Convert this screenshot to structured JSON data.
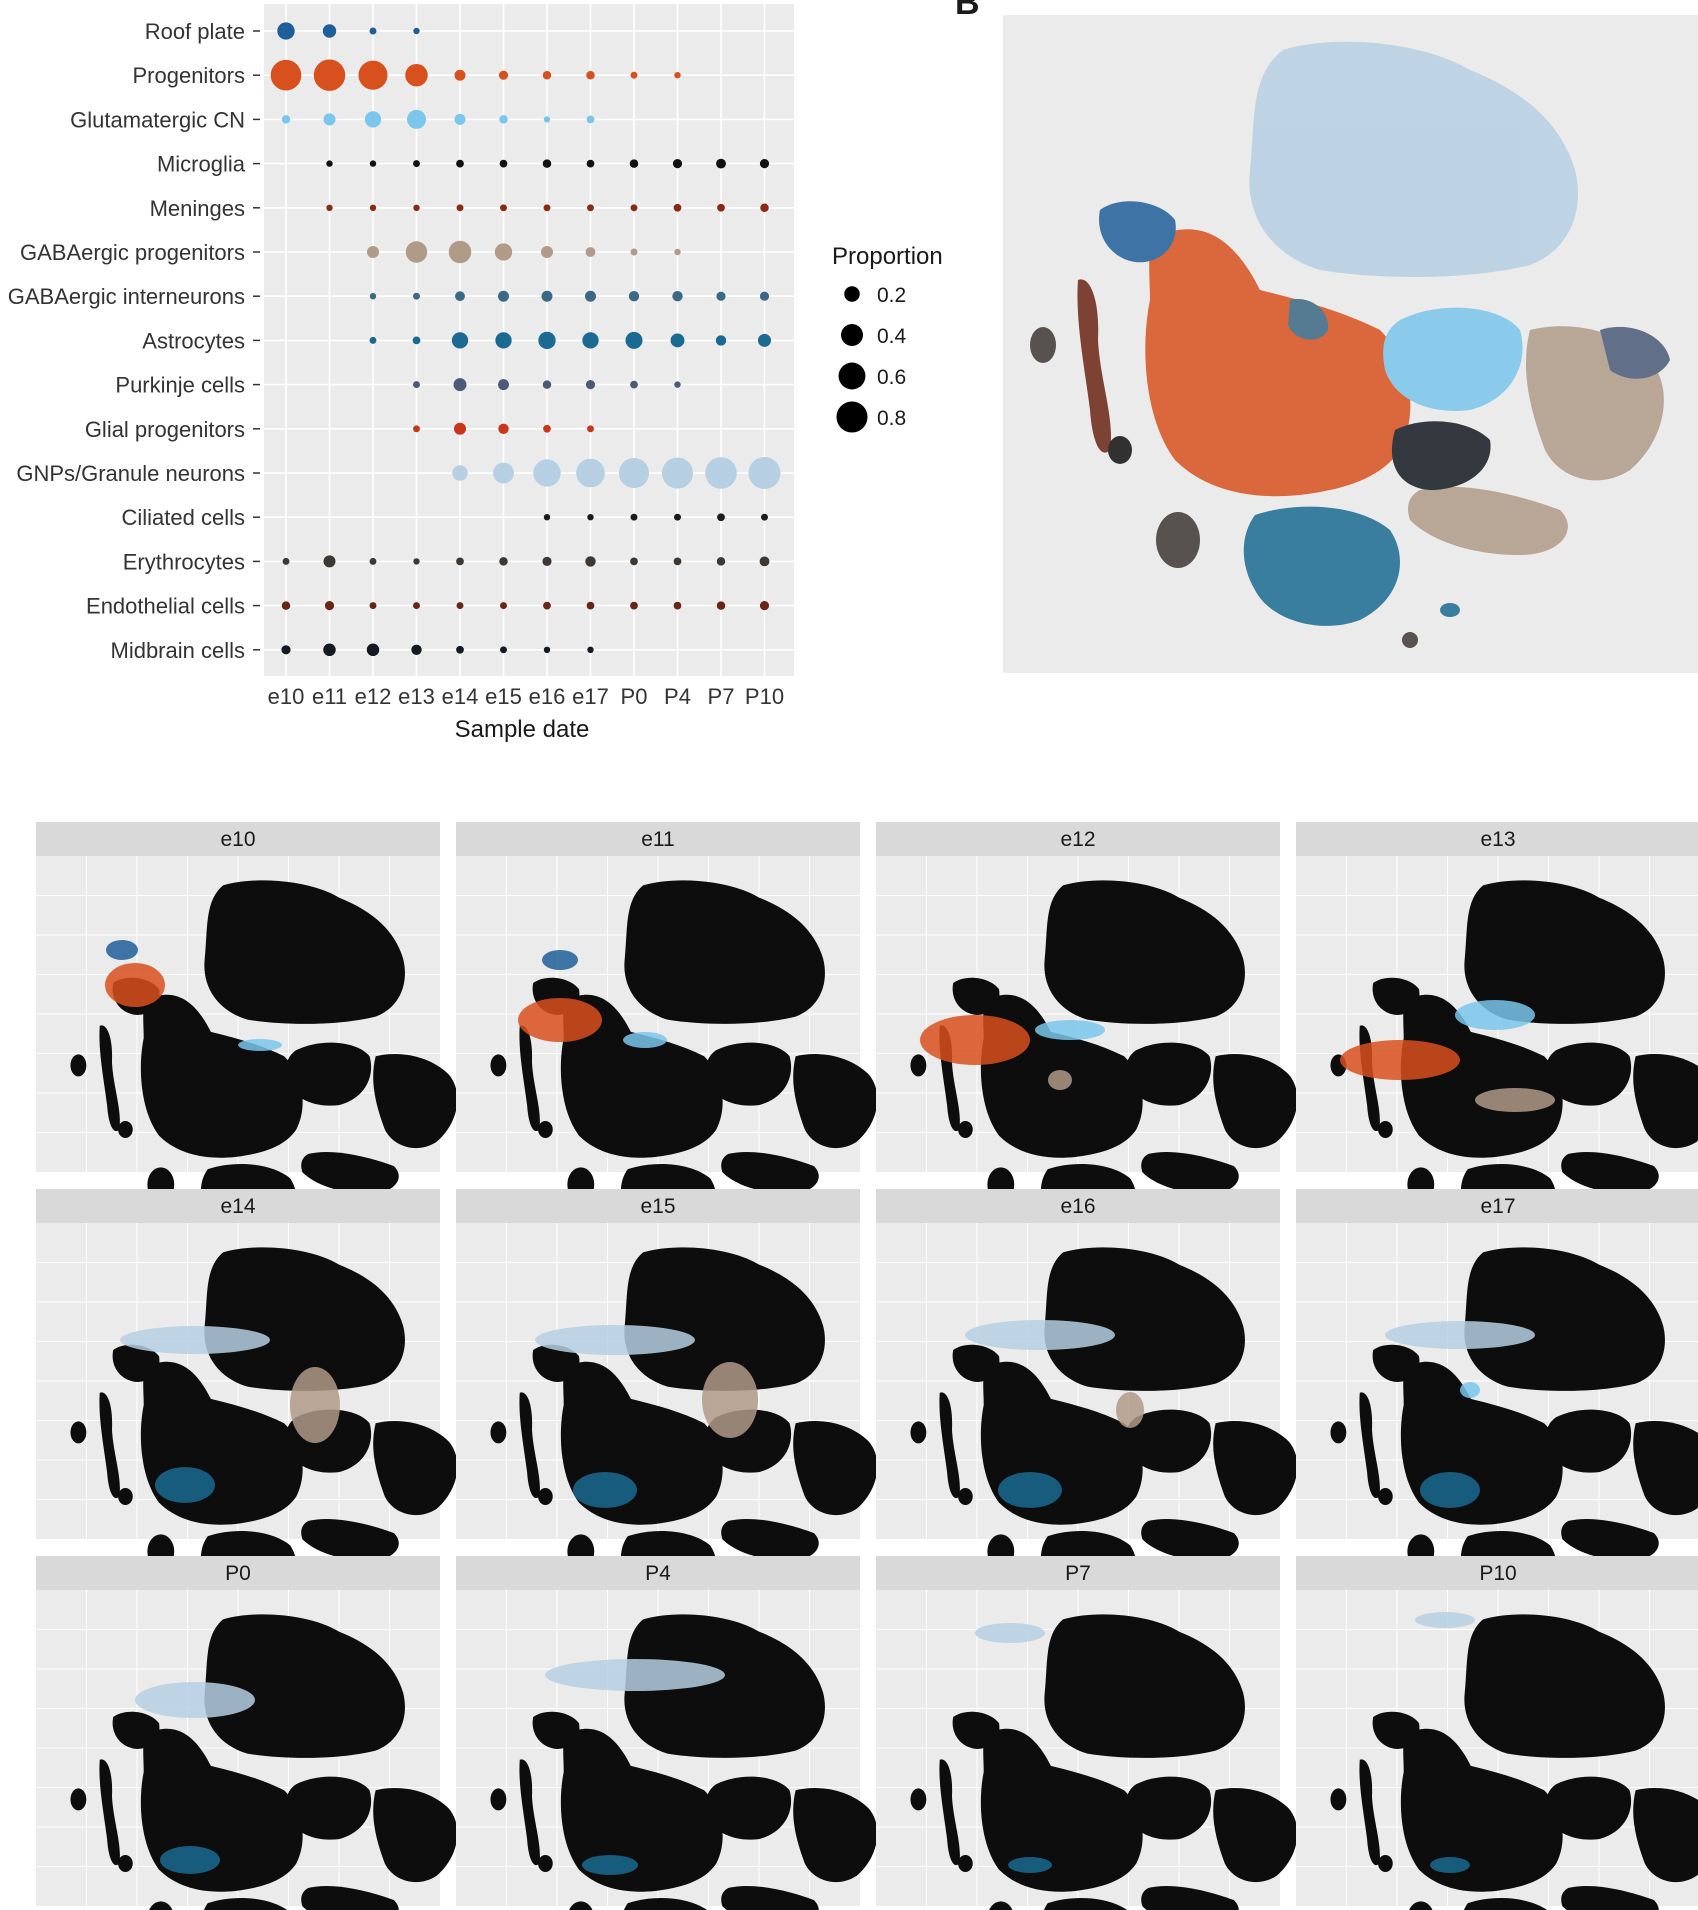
{
  "figure": {
    "panel_letter": "B"
  },
  "chart_data": [
    {
      "type": "scatter",
      "subtype": "dot-plot",
      "xlabel": "Sample date",
      "categories": [
        "e10",
        "e11",
        "e12",
        "e13",
        "e14",
        "e15",
        "e16",
        "e17",
        "P0",
        "P4",
        "P7",
        "P10"
      ],
      "cell_types": [
        "Roof plate",
        "Progenitors",
        "Glutamatergic CN",
        "Microglia",
        "Meninges",
        "GABAergic progenitors",
        "GABAergic interneurons",
        "Astrocytes",
        "Purkinje cells",
        "Glial progenitors",
        "GNPs/Granule neurons",
        "Ciliated cells",
        "Erythrocytes",
        "Endothelial cells",
        "Midbrain cells"
      ],
      "colors": {
        "Roof plate": "#1f5f99",
        "Progenitors": "#d9501f",
        "Glutamatergic CN": "#7ac6ec",
        "Microglia": "#111111",
        "Meninges": "#8a2a10",
        "GABAergic progenitors": "#b09a88",
        "GABAergic interneurons": "#3b6884",
        "Astrocytes": "#1a6a92",
        "Purkinje cells": "#4a5a78",
        "Glial progenitors": "#c9361a",
        "GNPs/Granule neurons": "#b6cfe2",
        "Ciliated cells": "#1c1c1c",
        "Erythrocytes": "#3e3835",
        "Endothelial cells": "#6b2515",
        "Midbrain cells": "#151a22"
      },
      "series": [
        {
          "name": "Roof plate",
          "values": [
            0.25,
            0.15,
            0.04,
            0.03,
            null,
            null,
            null,
            null,
            null,
            null,
            null,
            null
          ]
        },
        {
          "name": "Progenitors",
          "values": [
            0.78,
            0.82,
            0.7,
            0.42,
            0.1,
            0.07,
            0.06,
            0.06,
            0.04,
            0.03,
            null,
            null
          ]
        },
        {
          "name": "Glutamatergic CN",
          "values": [
            0.06,
            0.12,
            0.22,
            0.3,
            0.1,
            0.06,
            0.03,
            0.05,
            null,
            null,
            null,
            null
          ]
        },
        {
          "name": "Microglia",
          "values": [
            null,
            0.03,
            0.03,
            0.04,
            0.05,
            0.05,
            0.06,
            0.05,
            0.06,
            0.07,
            0.08,
            0.07
          ]
        },
        {
          "name": "Meninges",
          "values": [
            null,
            0.03,
            0.03,
            0.03,
            0.04,
            0.04,
            0.04,
            0.04,
            0.04,
            0.05,
            0.05,
            0.06
          ]
        },
        {
          "name": "GABAergic progenitors",
          "values": [
            null,
            null,
            0.12,
            0.38,
            0.42,
            0.25,
            0.12,
            0.08,
            0.04,
            0.03,
            null,
            null
          ]
        },
        {
          "name": "GABAergic interneurons",
          "values": [
            null,
            null,
            0.03,
            0.04,
            0.08,
            0.1,
            0.1,
            0.1,
            0.09,
            0.09,
            0.07,
            0.07
          ]
        },
        {
          "name": "Astrocytes",
          "values": [
            null,
            null,
            0.04,
            0.05,
            0.22,
            0.22,
            0.25,
            0.22,
            0.24,
            0.16,
            0.09,
            0.14
          ]
        },
        {
          "name": "Purkinje cells",
          "values": [
            null,
            null,
            null,
            0.04,
            0.14,
            0.1,
            0.06,
            0.07,
            0.05,
            0.03,
            null,
            null
          ]
        },
        {
          "name": "Glial progenitors",
          "values": [
            null,
            null,
            null,
            0.04,
            0.12,
            0.09,
            0.05,
            0.04,
            null,
            null,
            null,
            null
          ]
        },
        {
          "name": "GNPs/Granule neurons",
          "values": [
            null,
            null,
            null,
            null,
            0.2,
            0.36,
            0.62,
            0.68,
            0.75,
            0.8,
            0.83,
            0.85
          ]
        },
        {
          "name": "Ciliated cells",
          "values": [
            null,
            null,
            null,
            null,
            null,
            null,
            0.03,
            0.03,
            0.04,
            0.04,
            0.05,
            0.04
          ]
        },
        {
          "name": "Erythrocytes",
          "values": [
            0.04,
            0.12,
            0.04,
            0.03,
            0.05,
            0.06,
            0.07,
            0.09,
            0.05,
            0.05,
            0.06,
            0.08
          ]
        },
        {
          "name": "Endothelial cells",
          "values": [
            0.06,
            0.07,
            0.04,
            0.04,
            0.04,
            0.04,
            0.05,
            0.05,
            0.05,
            0.05,
            0.06,
            0.07
          ]
        },
        {
          "name": "Midbrain cells",
          "values": [
            0.07,
            0.13,
            0.13,
            0.09,
            0.05,
            0.04,
            0.03,
            0.03,
            null,
            null,
            null,
            null
          ]
        }
      ],
      "legend": {
        "title": "Proportion",
        "levels": [
          0.2,
          0.4,
          0.6,
          0.8
        ],
        "labels": [
          "0.2",
          "0.4",
          "0.6",
          "0.8"
        ],
        "placement": "right"
      },
      "grid": true
    },
    {
      "type": "scatter",
      "subtype": "t-SNE embedding, all cells colored by cell type",
      "axes_shown": false
    },
    {
      "type": "scatter",
      "subtype": "t-SNE embedding faceted by sample date",
      "facets": [
        "e10",
        "e11",
        "e12",
        "e13",
        "e14",
        "e15",
        "e16",
        "e17",
        "P0",
        "P4",
        "P7",
        "P10"
      ]
    }
  ]
}
